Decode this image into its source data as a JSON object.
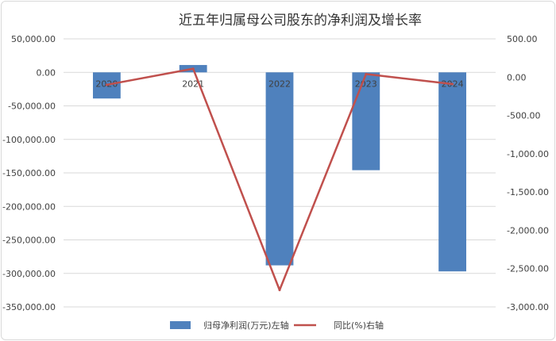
{
  "chart_data": {
    "type": "bar",
    "title": "近五年归属母公司股东的净利润及增长率",
    "categories": [
      "2020",
      "2021",
      "2022",
      "2023",
      "2024"
    ],
    "series": [
      {
        "name": "归母净利润(万元)左轴",
        "type": "bar",
        "axis": "left",
        "color": "#4f81bd",
        "values": [
          -39000,
          11000,
          -288000,
          -146000,
          -297000
        ]
      },
      {
        "name": "同比(%)右轴",
        "type": "line",
        "axis": "right",
        "color": "#c0504d",
        "values": [
          -100,
          110,
          -2780,
          40,
          -90
        ]
      }
    ],
    "y_left": {
      "ylim": [
        -350000,
        50000
      ],
      "ticks": [
        50000,
        0,
        -50000,
        -100000,
        -150000,
        -200000,
        -250000,
        -300000,
        -350000
      ],
      "tick_labels": [
        "50,000.00",
        "0.00",
        "-50,000.00",
        "-100,000.00",
        "-150,000.00",
        "-200,000.00",
        "-250,000.00",
        "-300,000.00",
        "-350,000.00"
      ]
    },
    "y_right": {
      "ylim": [
        -3000,
        500
      ],
      "ticks": [
        500,
        0,
        -500,
        -1000,
        -1500,
        -2000,
        -2500,
        -3000
      ],
      "tick_labels": [
        "500.00",
        "0.00",
        "-500.00",
        "-1,000.00",
        "-1,500.00",
        "-2,000.00",
        "-2,500.00",
        "-3,000.00"
      ]
    },
    "grid": true,
    "legend": "bottom"
  }
}
